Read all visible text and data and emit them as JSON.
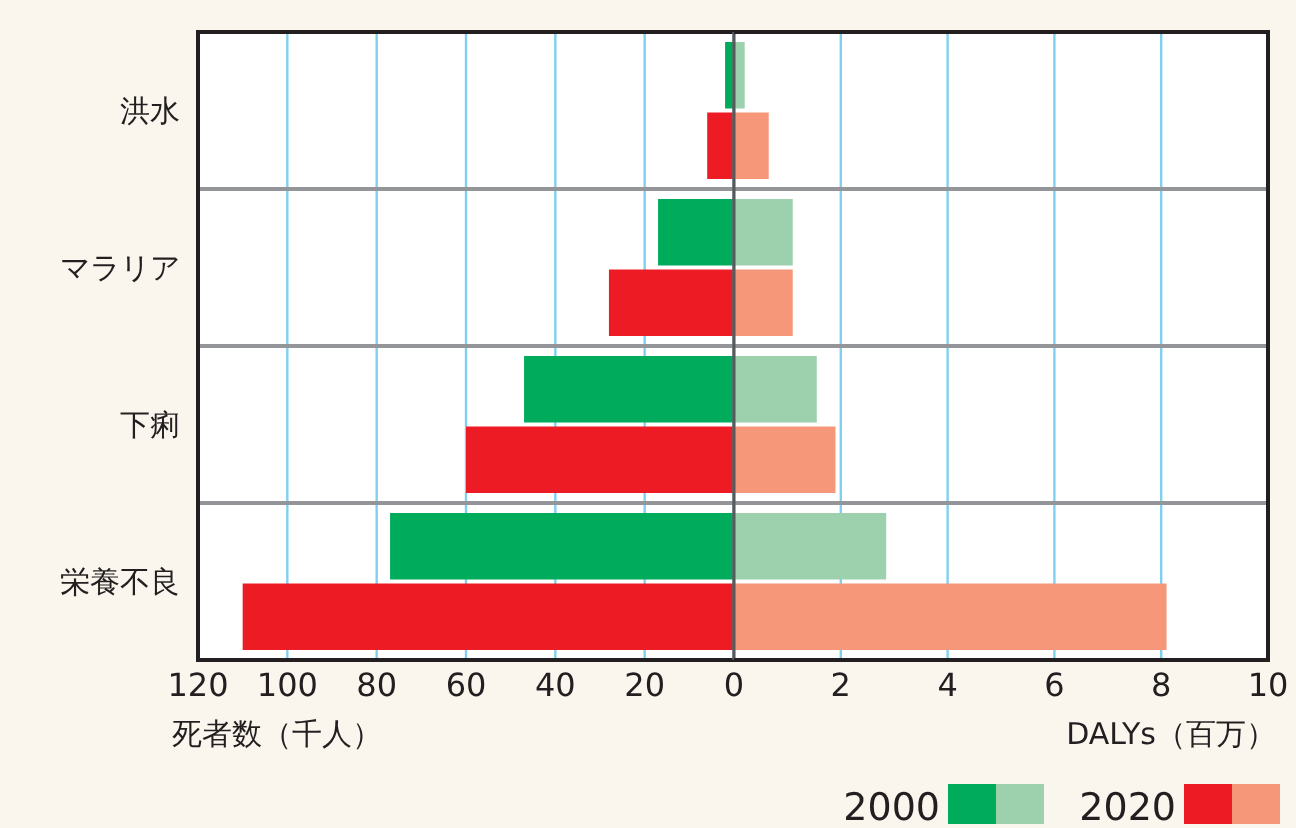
{
  "chart_data": [
    {
      "type": "bar",
      "orientation": "horizontal",
      "categories": [
        "洪水",
        "マラリア",
        "下痢",
        "栄養不良"
      ],
      "xlabel": "死者数（千人）",
      "xlim": [
        120,
        0
      ],
      "xticks": [
        120,
        100,
        80,
        60,
        40,
        20,
        0
      ],
      "grid": "x",
      "legend": "bottom right",
      "series": [
        {
          "name": "2000",
          "color": "#00ab5c",
          "values": [
            2,
            17,
            47,
            77
          ]
        },
        {
          "name": "2020",
          "color": "#ed1c24",
          "values": [
            6,
            28,
            60,
            110
          ]
        }
      ]
    },
    {
      "type": "bar",
      "orientation": "horizontal",
      "categories": [
        null,
        null,
        null,
        null
      ],
      "tick_labels": "x",
      "xlabel": "DALYs（百万）",
      "xlim": [
        0,
        10
      ],
      "xticks": [
        {
          "value": 0,
          "label": null
        },
        2,
        4,
        6,
        8,
        10
      ],
      "grid": "x",
      "series": [
        {
          "color": "#9dd0ad",
          "values": [
            0.2,
            1.1,
            1.55,
            2.85
          ]
        },
        {
          "color": "#f59778",
          "values": [
            0.65,
            1.1,
            1.9,
            8.1
          ]
        }
      ]
    }
  ]
}
